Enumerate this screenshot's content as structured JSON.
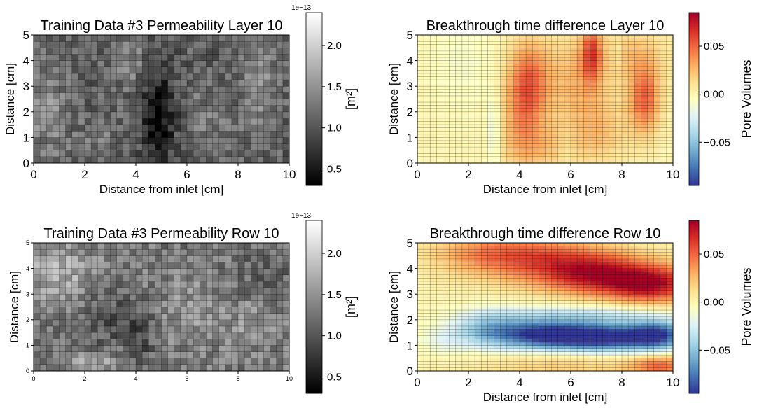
{
  "chart_data": [
    {
      "type": "heatmap",
      "title": "Training Data #3 Permeability Layer 10",
      "xlabel": "Distance from inlet [cm]",
      "ylabel": "Distance [cm]",
      "xlim": [
        0,
        10
      ],
      "ylim": [
        0,
        5
      ],
      "xticks": [
        0,
        2,
        4,
        6,
        8,
        10
      ],
      "yticks": [
        0,
        1,
        2,
        3,
        4,
        5
      ],
      "grid_cells": [
        40,
        20
      ],
      "colormap": "gray",
      "colorbar": {
        "label": "[m²]",
        "exponent": "1e−13",
        "ticks": [
          0.5,
          1.0,
          1.5,
          2.0
        ],
        "range": [
          0.3,
          2.4
        ],
        "tick_labels": [
          "0.5",
          "1.0",
          "1.5",
          "2.0"
        ]
      },
      "pattern": {
        "base": 1.1,
        "features": [
          {
            "x": 4.9,
            "y": 1.8,
            "amp": -0.75,
            "sx": 0.45,
            "sy": 1.4
          },
          {
            "x": 0.5,
            "y": 2.0,
            "amp": 0.35,
            "sx": 0.6,
            "sy": 1.5
          },
          {
            "x": 3.8,
            "y": 4.0,
            "amp": 0.3,
            "sx": 0.4,
            "sy": 0.8
          },
          {
            "x": 8.8,
            "y": 2.8,
            "amp": 0.35,
            "sx": 0.5,
            "sy": 1.5
          },
          {
            "x": 6.8,
            "y": 1.5,
            "amp": 0.25,
            "sx": 0.5,
            "sy": 1.0
          },
          {
            "x": 2.5,
            "y": 1.0,
            "amp": 0.2,
            "sx": 0.5,
            "sy": 0.7
          }
        ],
        "noise": 0.28,
        "seed": 11
      }
    },
    {
      "type": "heatmap",
      "title": "Breakthrough time difference Layer 10",
      "xlabel": "Distance from inlet [cm]",
      "ylabel": "Distance [cm]",
      "xlim": [
        0,
        10
      ],
      "ylim": [
        0,
        5
      ],
      "xticks": [
        0,
        2,
        4,
        6,
        8,
        10
      ],
      "yticks": [
        0,
        1,
        2,
        3,
        4,
        5
      ],
      "grid_cells": [
        40,
        40
      ],
      "colormap": "RdYlBu_r",
      "colorbar": {
        "label": "Pore Volumes",
        "ticks": [
          -0.05,
          0.0,
          0.05
        ],
        "range": [
          -0.095,
          0.085
        ],
        "tick_labels": [
          "−0.05",
          "0.00",
          "0.05"
        ]
      },
      "pattern": {
        "base": 0.0,
        "features": [
          {
            "x": 4.4,
            "y": 3.2,
            "amp": 0.04,
            "sx": 0.55,
            "sy": 1.2
          },
          {
            "x": 4.0,
            "y": 2.0,
            "amp": 0.025,
            "sx": 0.6,
            "sy": 1.5
          },
          {
            "x": 6.8,
            "y": 4.3,
            "amp": 0.045,
            "sx": 0.25,
            "sy": 0.8
          },
          {
            "x": 6.2,
            "y": 3.2,
            "amp": 0.025,
            "sx": 0.9,
            "sy": 1.3
          },
          {
            "x": 8.9,
            "y": 2.5,
            "amp": 0.05,
            "sx": 0.45,
            "sy": 1.0
          },
          {
            "x": 8.2,
            "y": 4.3,
            "amp": 0.02,
            "sx": 1.2,
            "sy": 0.8
          },
          {
            "x": 7.1,
            "y": 1.2,
            "amp": 0.022,
            "sx": 0.8,
            "sy": 1.0
          },
          {
            "x": 4.8,
            "y": 0.6,
            "amp": 0.02,
            "sx": 0.9,
            "sy": 0.7
          },
          {
            "x": 3.0,
            "y": 1.2,
            "amp": -0.018,
            "sx": 0.2,
            "sy": 1.2
          },
          {
            "x": 1.8,
            "y": 4.0,
            "amp": -0.008,
            "sx": 1.0,
            "sy": 1.5
          },
          {
            "x": 5.9,
            "y": 0.7,
            "amp": -0.008,
            "sx": 0.2,
            "sy": 0.5
          },
          {
            "x": 7.8,
            "y": 4.3,
            "amp": -0.012,
            "sx": 0.2,
            "sy": 0.5
          }
        ],
        "noise": 0.002,
        "seed": 23
      }
    },
    {
      "type": "heatmap",
      "title": "Training Data #3 Permeability Row 10",
      "xlabel": "",
      "ylabel": "Distance [cm]",
      "xlim": [
        0,
        10
      ],
      "ylim": [
        0,
        5
      ],
      "xticks": [
        0,
        2,
        4,
        6,
        8,
        10
      ],
      "yticks": [
        0,
        1,
        2,
        3,
        4,
        5
      ],
      "grid_cells": [
        40,
        20
      ],
      "colormap": "gray",
      "colorbar": {
        "label": "[m²]",
        "exponent": "1e−13",
        "ticks": [
          0.5,
          1.0,
          1.5,
          2.0
        ],
        "range": [
          0.3,
          2.4
        ],
        "tick_labels": [
          "0.5",
          "1.0",
          "1.5",
          "2.0"
        ]
      },
      "pattern": {
        "base": 1.3,
        "features": [
          {
            "x": 1.0,
            "y": 3.8,
            "amp": 0.45,
            "sx": 1.0,
            "sy": 1.0
          },
          {
            "x": 2.2,
            "y": 0.3,
            "amp": 0.35,
            "sx": 1.0,
            "sy": 0.3
          },
          {
            "x": 3.0,
            "y": 2.0,
            "amp": -0.35,
            "sx": 1.2,
            "sy": 0.7
          },
          {
            "x": 4.2,
            "y": 1.0,
            "amp": -0.3,
            "sx": 0.4,
            "sy": 0.8
          },
          {
            "x": 6.0,
            "y": 2.2,
            "amp": 0.25,
            "sx": 1.0,
            "sy": 1.0
          },
          {
            "x": 9.0,
            "y": 3.5,
            "amp": -0.2,
            "sx": 0.8,
            "sy": 1.0
          },
          {
            "x": 8.5,
            "y": 2.0,
            "amp": 0.25,
            "sx": 0.8,
            "sy": 0.8
          }
        ],
        "noise": 0.3,
        "seed": 37
      }
    },
    {
      "type": "heatmap",
      "title": "Breakthrough time difference Row 10",
      "xlabel": "Distance from inlet [cm]",
      "ylabel": "Distance [cm]",
      "xlim": [
        0,
        10
      ],
      "ylim": [
        0,
        5
      ],
      "xticks": [
        0,
        2,
        4,
        6,
        8,
        10
      ],
      "yticks": [
        0,
        1,
        2,
        3,
        4,
        5
      ],
      "grid_cells": [
        40,
        40
      ],
      "colormap": "RdYlBu_r",
      "colorbar": {
        "label": "Pore Volumes",
        "ticks": [
          -0.05,
          0.0,
          0.05
        ],
        "range": [
          -0.095,
          0.085
        ],
        "tick_labels": [
          "−0.05",
          "0.00",
          "0.05"
        ]
      },
      "pattern": {
        "base": 0.0,
        "features": [
          {
            "x": 9.2,
            "y": 3.4,
            "amp": 0.075,
            "sx": 1.3,
            "sy": 0.55
          },
          {
            "x": 6.8,
            "y": 3.8,
            "amp": 0.06,
            "sx": 1.5,
            "sy": 0.6
          },
          {
            "x": 3.0,
            "y": 4.6,
            "amp": 0.035,
            "sx": 1.8,
            "sy": 0.6
          },
          {
            "x": 5.0,
            "y": 4.3,
            "amp": 0.03,
            "sx": 2.0,
            "sy": 0.7
          },
          {
            "x": 9.5,
            "y": 0.2,
            "amp": 0.045,
            "sx": 0.8,
            "sy": 0.3
          },
          {
            "x": 6.0,
            "y": 0.3,
            "amp": 0.02,
            "sx": 2.5,
            "sy": 0.4
          },
          {
            "x": 5.0,
            "y": 1.4,
            "amp": -0.09,
            "sx": 1.3,
            "sy": 0.4
          },
          {
            "x": 7.4,
            "y": 1.3,
            "amp": -0.09,
            "sx": 1.3,
            "sy": 0.4
          },
          {
            "x": 9.4,
            "y": 1.4,
            "amp": -0.08,
            "sx": 0.8,
            "sy": 0.4
          },
          {
            "x": 2.8,
            "y": 1.6,
            "amp": -0.045,
            "sx": 1.0,
            "sy": 0.5
          },
          {
            "x": 1.0,
            "y": 1.2,
            "amp": -0.015,
            "sx": 0.7,
            "sy": 0.4
          },
          {
            "x": 6.5,
            "y": 2.2,
            "amp": -0.03,
            "sx": 2.5,
            "sy": 0.3
          }
        ],
        "noise": 0.002,
        "seed": 41
      }
    }
  ]
}
